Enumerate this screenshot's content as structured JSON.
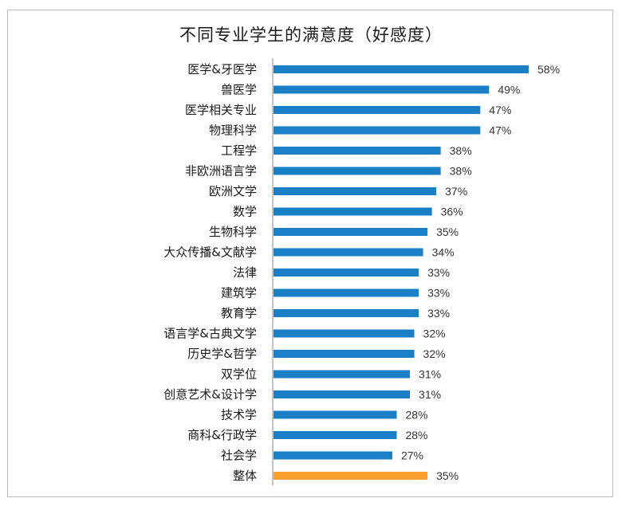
{
  "chart_data": {
    "type": "bar",
    "orientation": "horizontal",
    "title": "不同专业学生的满意度（好感度）",
    "xlabel": "",
    "ylabel": "",
    "xlim": [
      0,
      58
    ],
    "grid": false,
    "legend": "none",
    "value_suffix": "%",
    "categories": [
      "医学&牙医学",
      "兽医学",
      "医学相关专业",
      "物理科学",
      "工程学",
      "非欧洲语言学",
      "欧洲文学",
      "数学",
      "生物科学",
      "大众传播&文献学",
      "法律",
      "建筑学",
      "教育学",
      "语言学&古典文学",
      "历史学&哲学",
      "双学位",
      "创意艺术&设计学",
      "技术学",
      "商科&行政学",
      "社会学",
      "整体"
    ],
    "values": [
      58,
      49,
      47,
      47,
      38,
      38,
      37,
      36,
      35,
      34,
      33,
      33,
      33,
      32,
      32,
      31,
      31,
      28,
      28,
      27,
      35
    ],
    "value_labels": [
      "58%",
      "49%",
      "47%",
      "47%",
      "38%",
      "38%",
      "37%",
      "36%",
      "35%",
      "34%",
      "33%",
      "33%",
      "33%",
      "32%",
      "32%",
      "31%",
      "31%",
      "28%",
      "28%",
      "27%",
      "35%"
    ],
    "highlight_category": "整体",
    "colors": {
      "bar": "#1a7fc4",
      "highlight": "#f7a12c",
      "axis": "#8a8a8a"
    }
  }
}
